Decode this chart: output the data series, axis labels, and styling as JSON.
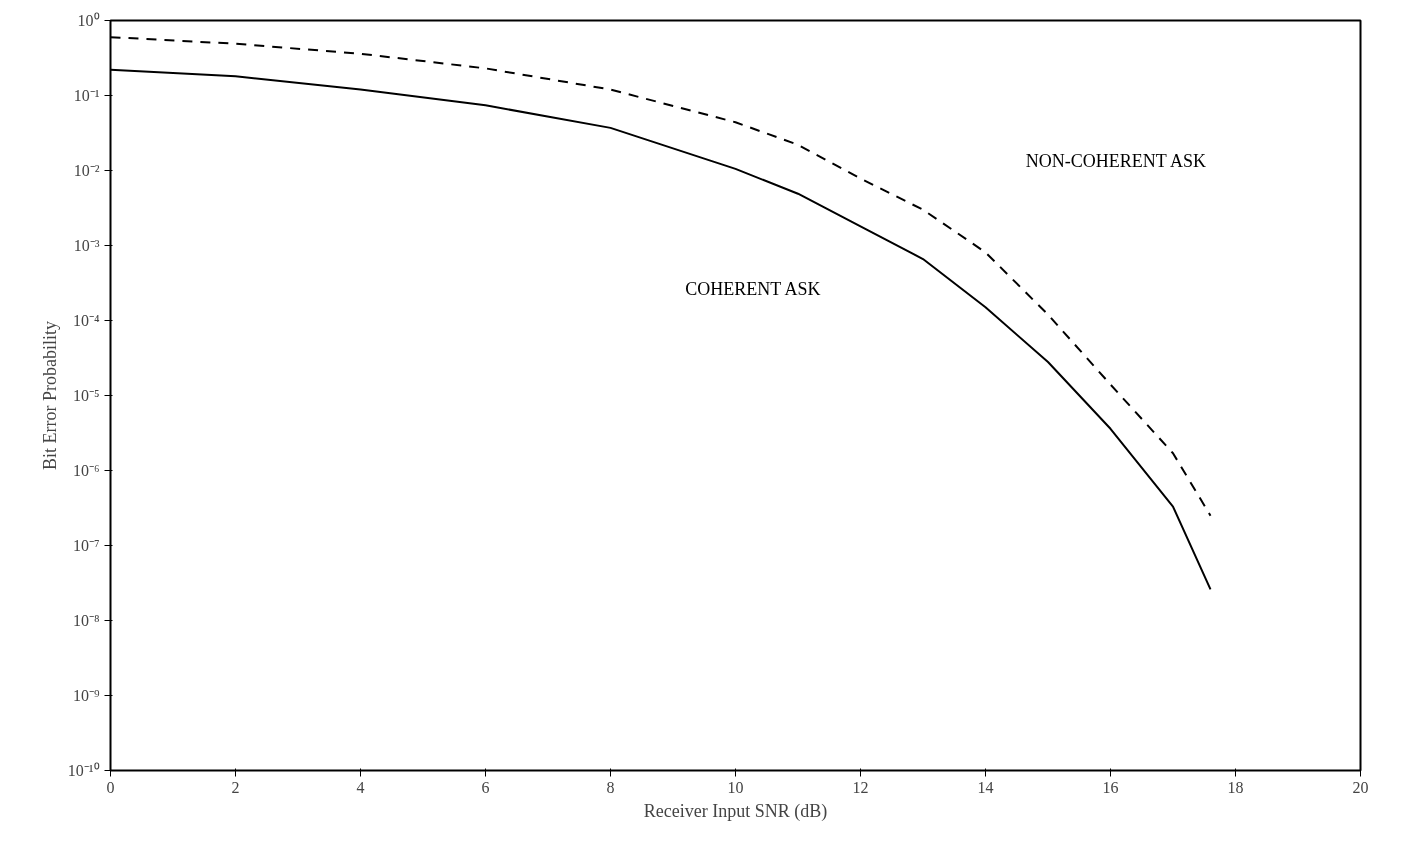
{
  "chart_data": {
    "type": "line",
    "xlabel": "Receiver Input SNR (dB)",
    "ylabel": "Bit Error Probability",
    "log": "y",
    "grid": false,
    "marker": "none",
    "xlim": [
      0,
      20
    ],
    "xticks": [
      0,
      2,
      4,
      6,
      8,
      10,
      12,
      14,
      16,
      18,
      20
    ],
    "ylim": [
      1e-10,
      1
    ],
    "yticks": [
      {
        "value": 1,
        "label": "10⁰"
      },
      {
        "value": 0.1,
        "label": "10⁻¹"
      },
      {
        "value": 0.01,
        "label": "10⁻²"
      },
      {
        "value": 0.001,
        "label": "10⁻³"
      },
      {
        "value": 0.0001,
        "label": "10⁻⁴"
      },
      {
        "value": 1e-05,
        "label": "10⁻⁵"
      },
      {
        "value": 1e-06,
        "label": "10⁻⁶"
      },
      {
        "value": 1e-07,
        "label": "10⁻⁷"
      },
      {
        "value": 1e-08,
        "label": "10⁻⁸"
      },
      {
        "value": 1e-09,
        "label": "10⁻⁹"
      },
      {
        "value": 1e-10,
        "label": "10⁻¹⁰"
      }
    ],
    "x": [
      0,
      2,
      4,
      6,
      8,
      10,
      11,
      12,
      13,
      14,
      15,
      16,
      17,
      17.6
    ],
    "series": [
      {
        "color": "#000000",
        "line_style": "solid",
        "values": [
          0.22,
          0.18,
          0.12,
          0.074,
          0.037,
          0.0105,
          0.0049,
          0.0018,
          0.00066,
          0.00015,
          2.8e-05,
          3.6e-06,
          3.3e-07,
          2.6e-08
        ]
      },
      {
        "color": "#000000",
        "line_style": "dashed",
        "values": [
          0.6,
          0.49,
          0.36,
          0.23,
          0.12,
          0.044,
          0.022,
          0.0078,
          0.003,
          0.00081,
          0.00012,
          1.4e-05,
          1.7e-06,
          2.5e-07
        ]
      }
    ],
    "annotations": [
      "NON-COHERENT ASK",
      "COHERENT ASK"
    ]
  }
}
